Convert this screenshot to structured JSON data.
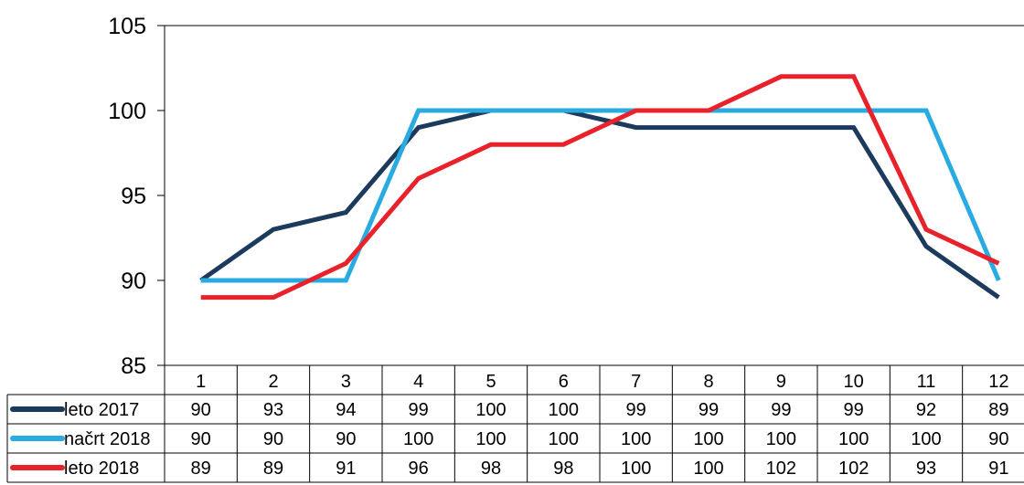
{
  "chart_data": {
    "type": "line",
    "title": "",
    "xlabel": "",
    "ylabel": "",
    "categories": [
      "1",
      "2",
      "3",
      "4",
      "5",
      "6",
      "7",
      "8",
      "9",
      "10",
      "11",
      "12"
    ],
    "ylim": [
      85,
      105
    ],
    "yticks": [
      85,
      90,
      95,
      100,
      105
    ],
    "grid": false,
    "legend": "data-table",
    "series": [
      {
        "name": "leto 2017",
        "color": "#1b3a5c",
        "values": [
          90,
          93,
          94,
          99,
          100,
          100,
          99,
          99,
          99,
          99,
          92,
          89
        ]
      },
      {
        "name": "načrt 2018",
        "color": "#29abe2",
        "values": [
          90,
          90,
          90,
          100,
          100,
          100,
          100,
          100,
          100,
          100,
          100,
          90
        ]
      },
      {
        "name": "leto 2018",
        "color": "#e8212b",
        "values": [
          89,
          89,
          91,
          96,
          98,
          98,
          100,
          100,
          102,
          102,
          93,
          91
        ]
      }
    ]
  }
}
